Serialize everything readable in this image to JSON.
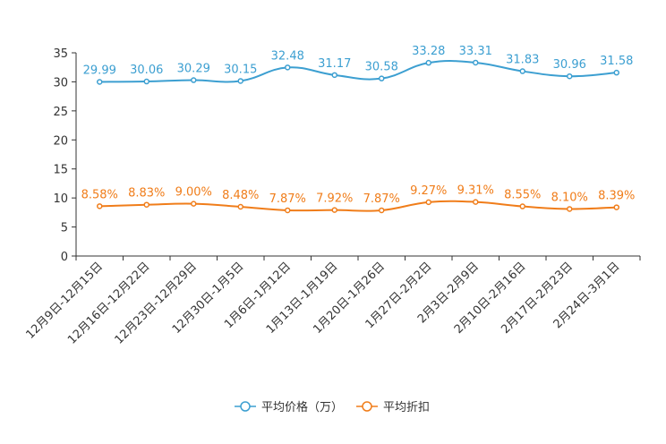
{
  "chart_data": {
    "type": "line",
    "title": "",
    "xlabel": "",
    "ylabel": "",
    "ylim": [
      0,
      35
    ],
    "yticks": [
      0,
      5,
      10,
      15,
      20,
      25,
      30,
      35
    ],
    "grid": false,
    "legend_position": "bottom-center",
    "categories": [
      "12月9日-12月15日",
      "12月16日-12月22日",
      "12月23日-12月29日",
      "12月30日-1月5日",
      "1月6日-1月12日",
      "1月13日-1月19日",
      "1月20日-1月26日",
      "1月27日-2月2日",
      "2月3日-2月9日",
      "2月10日-2月16日",
      "2月17日-2月23日",
      "2月24日-3月1日"
    ],
    "series": [
      {
        "name": "平均价格（万）",
        "color": "#3c9fd1",
        "values": [
          29.99,
          30.06,
          30.29,
          30.15,
          32.48,
          31.17,
          30.58,
          33.28,
          33.31,
          31.83,
          30.96,
          31.58
        ],
        "labels": [
          "29.99",
          "30.06",
          "30.29",
          "30.15",
          "32.48",
          "31.17",
          "30.58",
          "33.28",
          "33.31",
          "31.83",
          "30.96",
          "31.58"
        ]
      },
      {
        "name": "平均折扣",
        "color": "#f07d1a",
        "values": [
          8.58,
          8.83,
          9.0,
          8.48,
          7.87,
          7.92,
          7.87,
          9.27,
          9.31,
          8.55,
          8.1,
          8.39
        ],
        "labels": [
          "8.58%",
          "8.83%",
          "9.00%",
          "8.48%",
          "7.87%",
          "7.92%",
          "7.87%",
          "9.27%",
          "9.31%",
          "8.55%",
          "8.10%",
          "8.39%"
        ]
      }
    ]
  }
}
